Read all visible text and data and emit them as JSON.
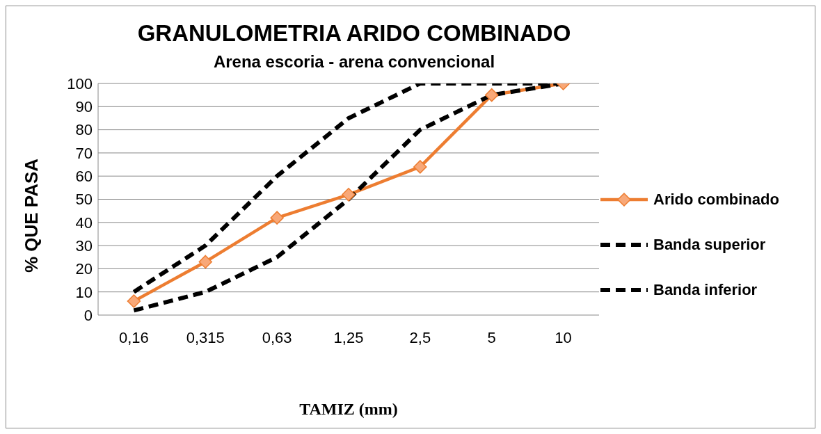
{
  "chart_data": {
    "type": "line",
    "title": "GRANULOMETRIA ARIDO COMBINADO",
    "subtitle": "Arena escoria - arena convencional",
    "xlabel": "TAMIZ (mm)",
    "ylabel": "% QUE PASA",
    "categories": [
      "0,16",
      "0,315",
      "0,63",
      "1,25",
      "2,5",
      "5",
      "10"
    ],
    "series": [
      {
        "name": "Arido combinado",
        "color": "#ed7d31",
        "values": [
          6,
          23,
          42,
          52,
          64,
          95,
          100
        ],
        "marker": "diamond",
        "line_style": "solid"
      },
      {
        "name": "Banda superior",
        "color": "#000000",
        "values": [
          10,
          30,
          60,
          85,
          100,
          100,
          100
        ],
        "marker": "none",
        "line_style": "dashed"
      },
      {
        "name": "Banda inferior",
        "color": "#000000",
        "values": [
          2,
          10,
          25,
          50,
          80,
          95,
          100
        ],
        "marker": "none",
        "line_style": "dashed"
      }
    ],
    "ylim": [
      0,
      100
    ],
    "yticks": [
      0,
      10,
      20,
      30,
      40,
      50,
      60,
      70,
      80,
      90,
      100
    ],
    "grid": "y",
    "legend": "right"
  }
}
